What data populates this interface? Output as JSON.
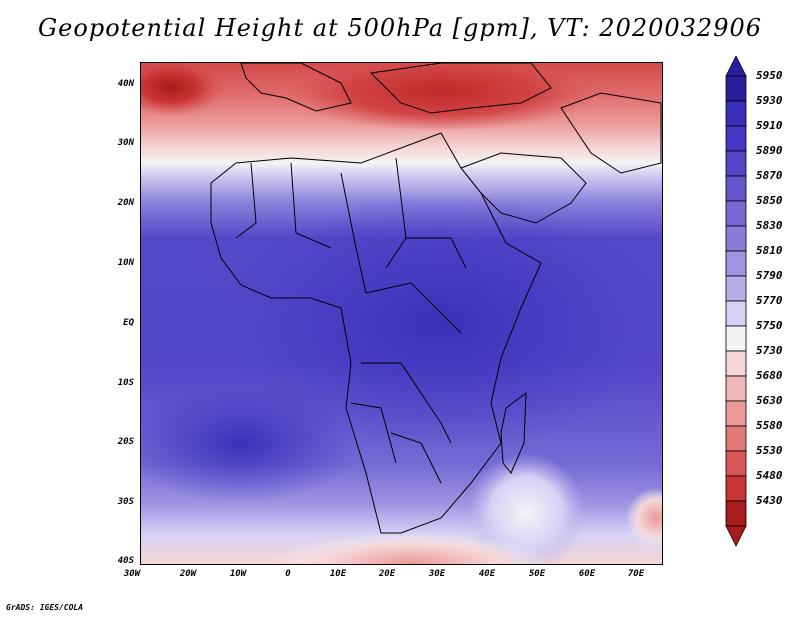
{
  "title": "Geopotential Height at 500hPa [gpm], VT: 2020032906",
  "footer": "GrADS: IGES/COLA",
  "map": {
    "variable": "Geopotential Height at 500hPa",
    "units": "gpm",
    "valid_time": "2020032906",
    "lat_labels": [
      "40N",
      "30N",
      "20N",
      "10N",
      "EQ",
      "10S",
      "20S",
      "30S",
      "40S"
    ],
    "lon_labels": [
      "30W",
      "20W",
      "10W",
      "0",
      "10E",
      "20E",
      "30E",
      "40E",
      "50E",
      "60E",
      "70E"
    ]
  },
  "colorbar": {
    "labels": [
      "5950",
      "5930",
      "5910",
      "5890",
      "5870",
      "5850",
      "5830",
      "5810",
      "5790",
      "5770",
      "5750",
      "5730",
      "5680",
      "5630",
      "5580",
      "5530",
      "5480",
      "5430"
    ],
    "colors": [
      "#2a1e9c",
      "#3a2fb8",
      "#4637c4",
      "#5446c8",
      "#6457ce",
      "#7669d4",
      "#897dda",
      "#9e94e2",
      "#b7afea",
      "#d6d2f5",
      "#f4f4f4",
      "#f6d6d6",
      "#f1b6b6",
      "#eb9a9a",
      "#e37878",
      "#d85656",
      "#c93434",
      "#a81c1c"
    ]
  },
  "colors": {
    "high": "#4637c4",
    "low": "#c02828",
    "boundary": "#000000"
  }
}
